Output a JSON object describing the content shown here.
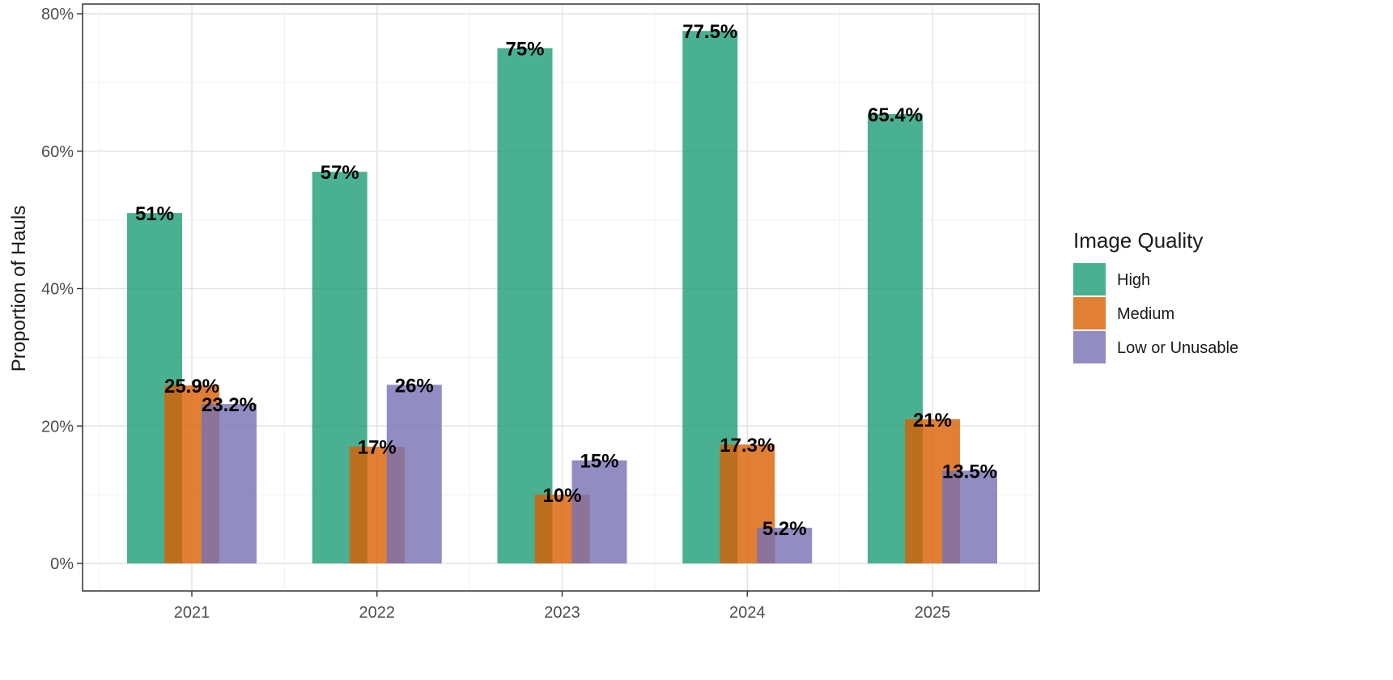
{
  "chart_data": {
    "type": "bar",
    "title": "",
    "xlabel": "",
    "ylabel": "Proportion of Hauls",
    "categories": [
      "2021",
      "2022",
      "2023",
      "2024",
      "2025"
    ],
    "series": [
      {
        "name": "High",
        "color": "#1b9e77",
        "values": [
          51,
          57,
          75,
          77.5,
          65.4
        ],
        "labels": [
          "51%",
          "57%",
          "75%",
          "77.5%",
          "65.4%"
        ]
      },
      {
        "name": "Medium",
        "color": "#d95f02",
        "values": [
          25.9,
          17,
          10,
          17.3,
          21
        ],
        "labels": [
          "25.9%",
          "17%",
          "10%",
          "17.3%",
          "21%"
        ]
      },
      {
        "name": "Low or Unusable",
        "color": "#7570b3",
        "values": [
          23.2,
          26,
          15,
          5.2,
          13.5
        ],
        "labels": [
          "23.2%",
          "26%",
          "15%",
          "5.2%",
          "13.5%"
        ]
      }
    ],
    "ylim": [
      0,
      80
    ],
    "yticks": [
      0,
      20,
      40,
      60,
      80
    ],
    "ytick_labels": [
      "0%",
      "20%",
      "40%",
      "60%",
      "80%"
    ],
    "grid": true,
    "bar_opacity": 0.8,
    "legend": {
      "title": "Image Quality",
      "position": "right"
    }
  }
}
